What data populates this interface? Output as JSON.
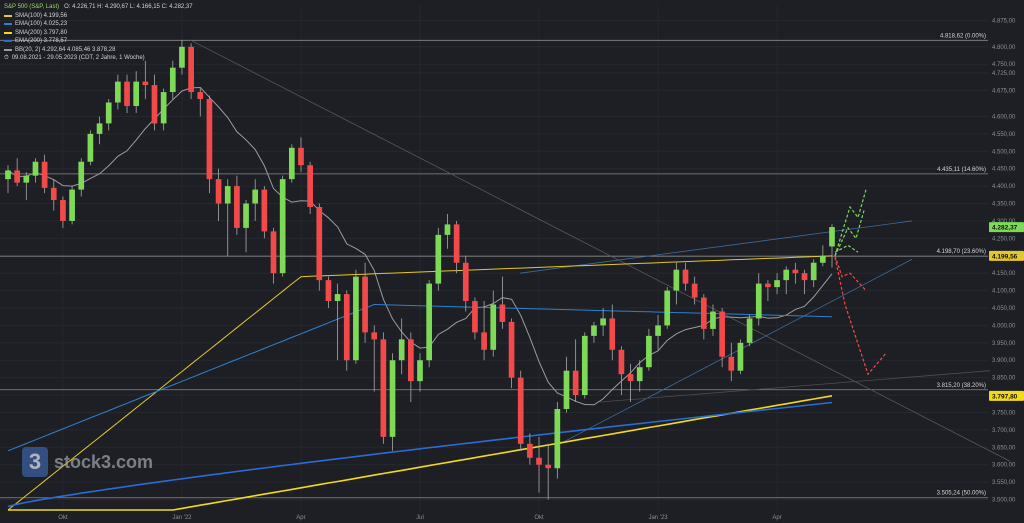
{
  "legend": {
    "title": "S&P 500 (S&P, Last)",
    "ohlc": "O: 4.226,71  H: 4.290,67  L: 4.166,15  C: 4.282,37",
    "sma100": "SMA(100)  4.199,56",
    "ema100": "EMA(100)  4.025,23",
    "sma200": "SMA(200)  3.797,80",
    "ema200": "EMA(200)  3.778,57",
    "bb": "BB(20, 2)  4.292,64  4.085,46  3.878,28",
    "range": "09.08.2021 - 29.05.2023    (CDT, 2 Jahre, 1 Woche)"
  },
  "logo": {
    "text": "stock3.com",
    "mark": "3"
  },
  "colors": {
    "up": "#7ed957",
    "down": "#f24a4a",
    "sma100": "#e4c72a",
    "ema100": "#2f7fd0",
    "sma200": "#f1da1c",
    "ema200": "#2a6cd4",
    "bb": "#9c9c9c",
    "bg": "#1d1f24"
  },
  "chart_data": {
    "type": "candlestick",
    "title": "S&P 500",
    "y_range": [
      3470,
      4920
    ],
    "y_ticks": [
      "4.875,00",
      "4.800,00",
      "4.750,00",
      "4.725,00",
      "4.675,00",
      "4.600,00",
      "4.550,00",
      "4.500,00",
      "4.450,00",
      "4.400,00",
      "4.350,00",
      "4.300,00",
      "4.250,00",
      "4.200,00",
      "4.150,00",
      "4.100,00",
      "4.050,00",
      "4.000,00",
      "3.950,00",
      "3.900,00",
      "3.850,00",
      "3.800,00",
      "3.750,00",
      "3.700,00",
      "3.650,00",
      "3.600,00",
      "3.550,00",
      "3.500,00"
    ],
    "x_ticks": [
      "Okt",
      "Jan '22",
      "Apr",
      "Jul",
      "Okt",
      "Jan '23",
      "Apr"
    ],
    "fib_levels": [
      {
        "label": "4.818,62 (0.00%)",
        "value": 4818.62
      },
      {
        "label": "4.435,11 (14.60%)",
        "value": 4435.11
      },
      {
        "label": "4.198,70 (23.60%)",
        "value": 4198.7
      },
      {
        "label": "3.815,20 (38.20%)",
        "value": 3815.2
      },
      {
        "label": "3.505,24 (50.00%)",
        "value": 3505.24
      }
    ],
    "price_tags": [
      {
        "label": "4.282,37",
        "value": 4282.37,
        "color": "#7ed957"
      },
      {
        "label": "4.199,56",
        "value": 4199.56,
        "color": "#e4c72a"
      },
      {
        "label": "3.797,80",
        "value": 3797.8,
        "color": "#f1da1c"
      }
    ],
    "candles": [
      [
        4420,
        4460,
        4380,
        4445
      ],
      [
        4445,
        4480,
        4400,
        4410
      ],
      [
        4410,
        4440,
        4360,
        4430
      ],
      [
        4430,
        4480,
        4410,
        4470
      ],
      [
        4470,
        4490,
        4380,
        4395
      ],
      [
        4395,
        4420,
        4330,
        4360
      ],
      [
        4360,
        4370,
        4280,
        4300
      ],
      [
        4300,
        4400,
        4290,
        4390
      ],
      [
        4390,
        4480,
        4370,
        4470
      ],
      [
        4470,
        4560,
        4460,
        4550
      ],
      [
        4550,
        4600,
        4520,
        4580
      ],
      [
        4580,
        4650,
        4560,
        4640
      ],
      [
        4640,
        4720,
        4620,
        4700
      ],
      [
        4700,
        4720,
        4610,
        4630
      ],
      [
        4630,
        4730,
        4610,
        4700
      ],
      [
        4700,
        4760,
        4650,
        4690
      ],
      [
        4690,
        4720,
        4560,
        4580
      ],
      [
        4580,
        4680,
        4560,
        4670
      ],
      [
        4670,
        4760,
        4650,
        4740
      ],
      [
        4740,
        4820,
        4720,
        4800
      ],
      [
        4800,
        4810,
        4650,
        4670
      ],
      [
        4670,
        4680,
        4600,
        4650
      ],
      [
        4650,
        4660,
        4380,
        4420
      ],
      [
        4420,
        4450,
        4300,
        4350
      ],
      [
        4350,
        4420,
        4200,
        4400
      ],
      [
        4400,
        4430,
        4260,
        4280
      ],
      [
        4280,
        4360,
        4210,
        4350
      ],
      [
        4350,
        4420,
        4300,
        4390
      ],
      [
        4390,
        4400,
        4250,
        4270
      ],
      [
        4270,
        4280,
        4120,
        4150
      ],
      [
        4150,
        4430,
        4140,
        4420
      ],
      [
        4420,
        4520,
        4410,
        4510
      ],
      [
        4510,
        4540,
        4440,
        4460
      ],
      [
        4460,
        4470,
        4320,
        4340
      ],
      [
        4340,
        4350,
        4100,
        4130
      ],
      [
        4130,
        4140,
        4050,
        4070
      ],
      [
        4070,
        4120,
        3900,
        4090
      ],
      [
        4090,
        4100,
        3870,
        3900
      ],
      [
        3900,
        4160,
        3890,
        4140
      ],
      [
        4140,
        4180,
        3950,
        3980
      ],
      [
        3980,
        4000,
        3810,
        3960
      ],
      [
        3960,
        3980,
        3660,
        3680
      ],
      [
        3680,
        3920,
        3640,
        3900
      ],
      [
        3900,
        4020,
        3860,
        3960
      ],
      [
        3960,
        3980,
        3780,
        3840
      ],
      [
        3840,
        3920,
        3810,
        3900
      ],
      [
        3900,
        4130,
        3880,
        4120
      ],
      [
        4120,
        4280,
        4100,
        4260
      ],
      [
        4260,
        4320,
        4220,
        4290
      ],
      [
        4290,
        4300,
        4150,
        4180
      ],
      [
        4180,
        4200,
        4040,
        4070
      ],
      [
        4070,
        4080,
        3960,
        3980
      ],
      [
        3980,
        4070,
        3900,
        3930
      ],
      [
        3930,
        4100,
        3910,
        4060
      ],
      [
        4060,
        4140,
        3990,
        4010
      ],
      [
        4010,
        4020,
        3820,
        3850
      ],
      [
        3850,
        3870,
        3640,
        3660
      ],
      [
        3660,
        3690,
        3600,
        3620
      ],
      [
        3620,
        3680,
        3520,
        3600
      ],
      [
        3600,
        3660,
        3500,
        3590
      ],
      [
        3590,
        3780,
        3560,
        3760
      ],
      [
        3760,
        3910,
        3750,
        3870
      ],
      [
        3870,
        3960,
        3780,
        3800
      ],
      [
        3800,
        3980,
        3790,
        3970
      ],
      [
        3970,
        4010,
        3950,
        4000
      ],
      [
        4000,
        4050,
        3970,
        4020
      ],
      [
        4020,
        4060,
        3900,
        3930
      ],
      [
        3930,
        3940,
        3800,
        3860
      ],
      [
        3860,
        3890,
        3780,
        3840
      ],
      [
        3840,
        3900,
        3810,
        3880
      ],
      [
        3880,
        3990,
        3870,
        3970
      ],
      [
        3970,
        4030,
        3930,
        4000
      ],
      [
        4000,
        4110,
        3990,
        4100
      ],
      [
        4100,
        4180,
        4060,
        4160
      ],
      [
        4160,
        4180,
        4100,
        4120
      ],
      [
        4120,
        4140,
        4060,
        4080
      ],
      [
        4080,
        4090,
        3960,
        3990
      ],
      [
        3990,
        4060,
        3970,
        4040
      ],
      [
        4040,
        4050,
        3880,
        3910
      ],
      [
        3910,
        3950,
        3840,
        3870
      ],
      [
        3870,
        3960,
        3860,
        3950
      ],
      [
        3950,
        4030,
        3940,
        4020
      ],
      [
        4020,
        4150,
        4000,
        4120
      ],
      [
        4120,
        4130,
        4070,
        4110
      ],
      [
        4110,
        4150,
        4090,
        4130
      ],
      [
        4130,
        4170,
        4090,
        4160
      ],
      [
        4160,
        4180,
        4120,
        4150
      ],
      [
        4150,
        4160,
        4090,
        4130
      ],
      [
        4130,
        4190,
        4110,
        4180
      ],
      [
        4180,
        4230,
        4170,
        4200
      ],
      [
        4226.71,
        4290.67,
        4166.15,
        4282.37
      ]
    ]
  }
}
